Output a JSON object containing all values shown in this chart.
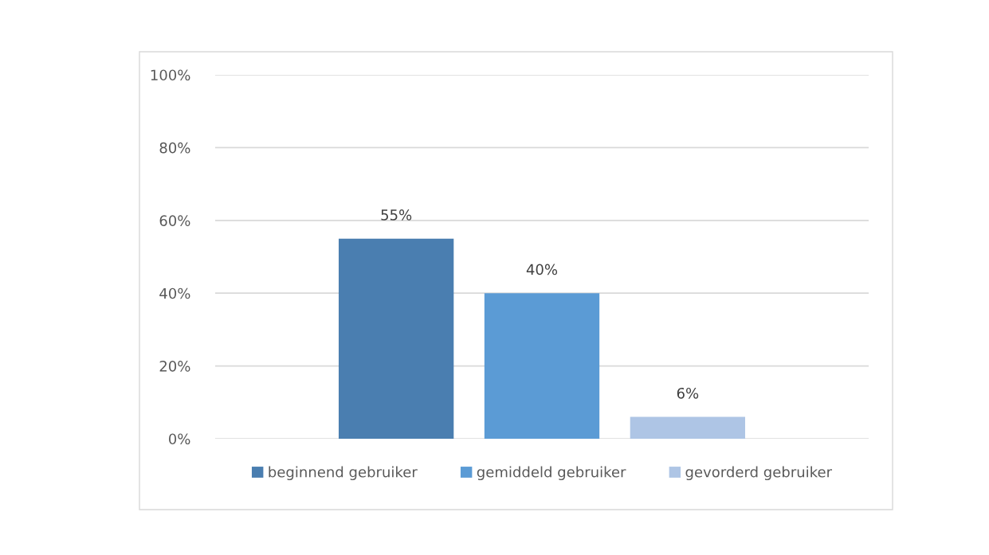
{
  "chart_data": {
    "type": "bar",
    "categories": [
      null
    ],
    "series": [
      {
        "name": "beginnend gebruiker",
        "color": "#4a7eb0",
        "values": [
          55
        ]
      },
      {
        "name": "gemiddeld gebruiker",
        "color": "#5b9bd5",
        "values": [
          40
        ]
      },
      {
        "name": "gevorderd gebruiker",
        "color": "#aec5e5",
        "values": [
          6
        ]
      }
    ],
    "ylim": [
      0,
      100
    ],
    "yticks": [
      {
        "value": 0,
        "label": "0%"
      },
      {
        "value": 20,
        "label": "20%"
      },
      {
        "value": 40,
        "label": "40%"
      },
      {
        "value": 60,
        "label": "60%"
      },
      {
        "value": 80,
        "label": "80%"
      },
      {
        "value": 100,
        "label": "100%"
      }
    ],
    "value_labels": [
      [
        "55%"
      ],
      [
        "40%"
      ],
      [
        "6%"
      ]
    ],
    "grid": "y",
    "legend": "bottom"
  }
}
